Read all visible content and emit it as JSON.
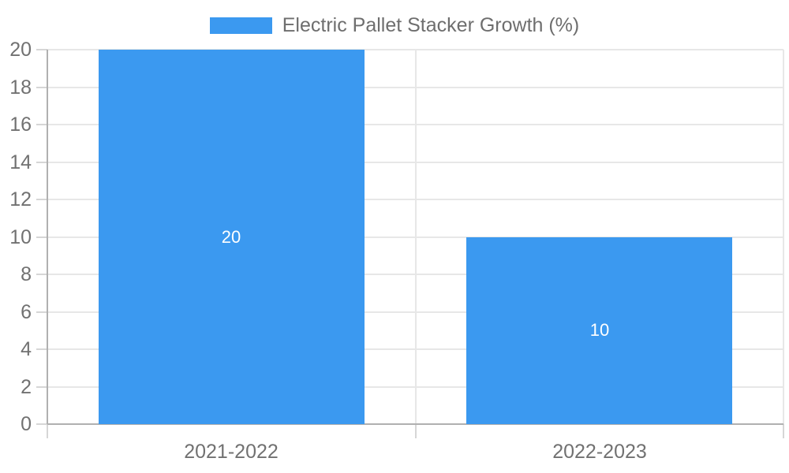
{
  "legend": {
    "label": "Electric Pallet Stacker Growth (%)"
  },
  "chart_data": {
    "type": "bar",
    "title": "Electric Pallet Stacker Growth (%)",
    "categories": [
      "2021-2022",
      "2022-2023"
    ],
    "series": [
      {
        "name": "Electric Pallet Stacker Growth (%)",
        "values": [
          20,
          10
        ]
      }
    ],
    "value_labels": [
      "20",
      "10"
    ],
    "xlabel": "",
    "ylabel": "",
    "ylim": [
      0,
      20
    ],
    "yticks": [
      0,
      2,
      4,
      6,
      8,
      10,
      12,
      14,
      16,
      18,
      20
    ],
    "grid": true,
    "legend_position": "top",
    "colors": {
      "bar": "#3B99F0",
      "value_label": "#ffffff",
      "gridline": "#e7e7e7",
      "tick_mark": "#d6d6d6",
      "axis_line": "#b0b0b0",
      "tick_label": "#717171",
      "legend_text": "#6e6e6e",
      "background": "#ffffff"
    }
  }
}
